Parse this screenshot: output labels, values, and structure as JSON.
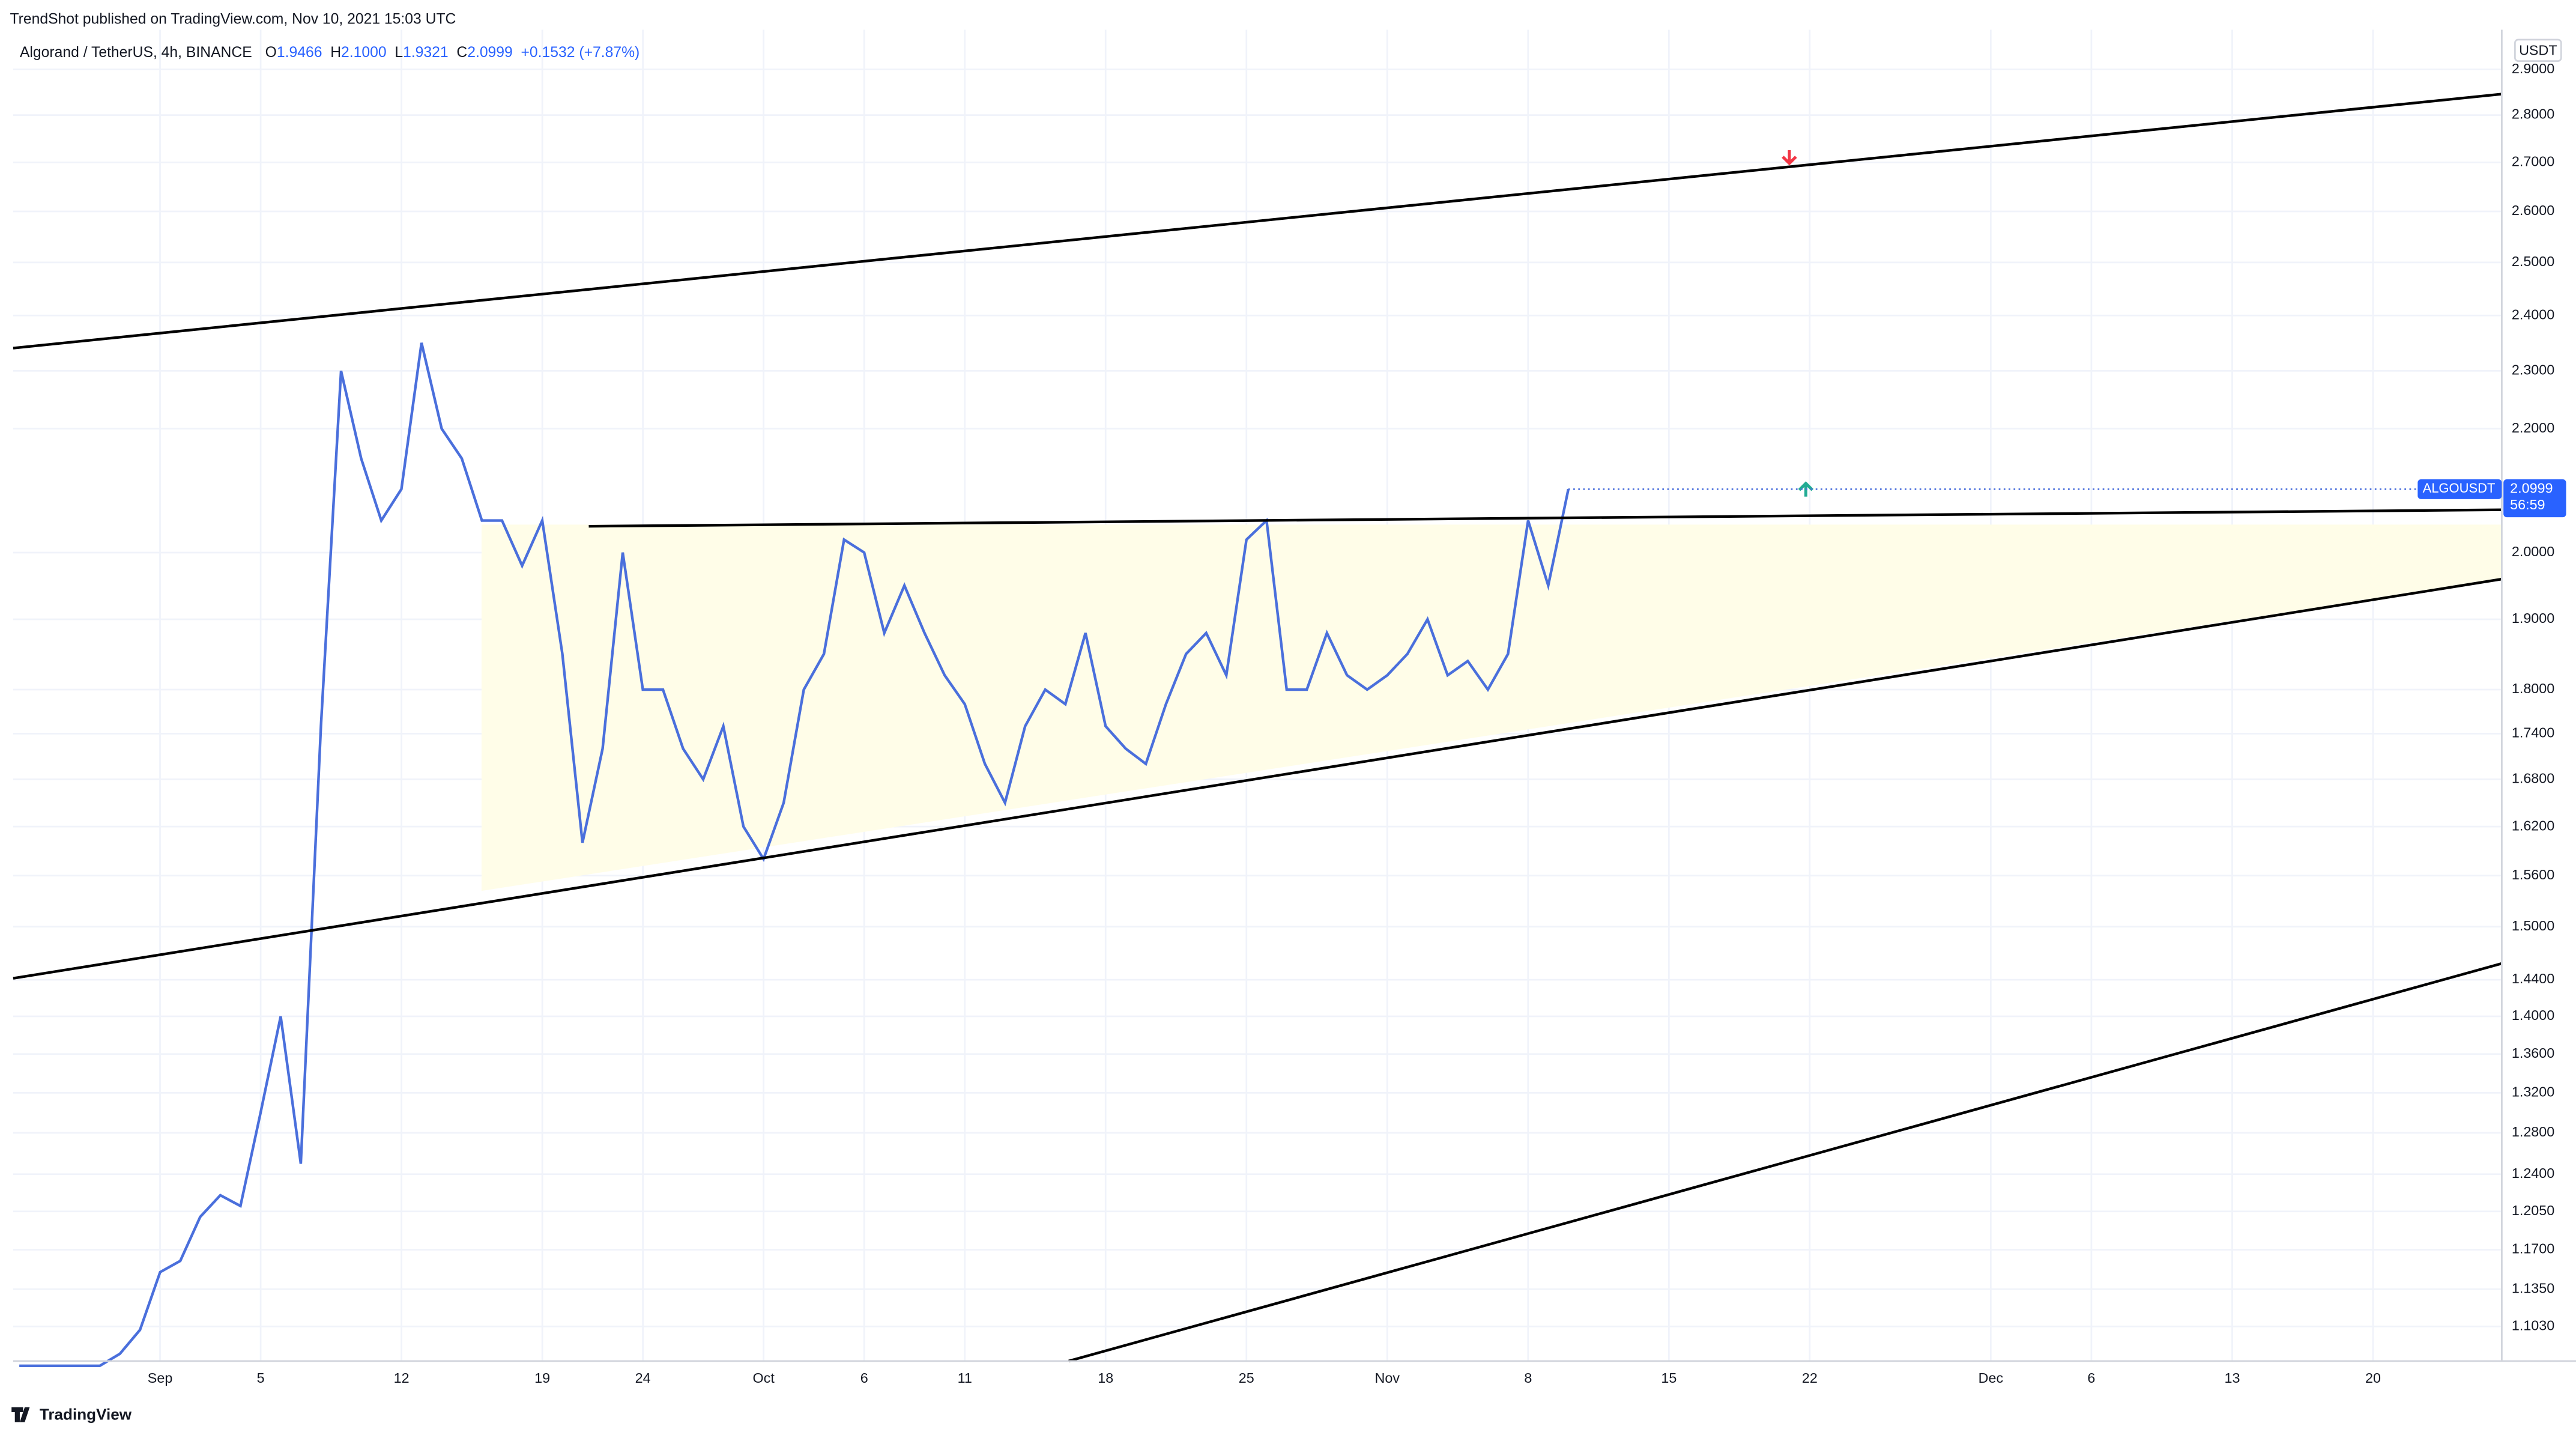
{
  "header": {
    "published": "TrendShot published on TradingView.com, Nov 10, 2021 15:03 UTC",
    "footer": "TradingView"
  },
  "chart_data": {
    "type": "line",
    "title": "Algorand / TetherUS, 4h, BINANCE",
    "ohlc": {
      "o_label": "O",
      "open": "1.9466",
      "h_label": "H",
      "high": "2.1000",
      "l_label": "L",
      "low": "1.9321",
      "c_label": "C",
      "close": "2.0999",
      "change": "+0.1532 (+7.87%)"
    },
    "symbol": "ALGOUSDT",
    "last_price": "2.0999",
    "countdown": "56:59",
    "currency": "USDT",
    "log_scale": true,
    "grid": true,
    "series": [
      {
        "name": "ALGOUSDT",
        "color": "#4a6fdc",
        "x": [
          -7,
          -6,
          -5,
          -4,
          -3,
          -2,
          -1,
          0,
          1,
          2,
          3,
          4,
          5,
          6,
          7,
          8,
          9,
          10,
          11,
          12,
          13,
          14,
          15,
          16,
          17,
          18,
          19,
          20,
          21,
          22,
          23,
          24,
          25,
          26,
          27,
          28,
          29,
          30,
          31,
          32,
          33,
          34,
          35,
          36,
          37,
          38,
          39,
          40,
          41,
          42,
          43,
          44,
          45,
          46,
          47,
          48,
          49,
          50,
          51,
          52,
          53,
          54,
          55,
          56,
          57,
          58,
          59,
          60,
          61,
          62,
          63,
          64,
          65,
          66,
          67,
          68,
          69,
          70
        ],
        "values": [
          1.07,
          1.07,
          1.07,
          1.07,
          1.07,
          1.08,
          1.1,
          1.15,
          1.16,
          1.2,
          1.22,
          1.21,
          1.3,
          1.4,
          1.25,
          1.75,
          2.3,
          2.15,
          2.05,
          2.1,
          2.35,
          2.2,
          2.15,
          2.05,
          2.05,
          1.98,
          2.05,
          1.85,
          1.6,
          1.72,
          2.0,
          1.8,
          1.8,
          1.72,
          1.68,
          1.75,
          1.62,
          1.58,
          1.65,
          1.8,
          1.85,
          2.02,
          2.0,
          1.88,
          1.95,
          1.88,
          1.82,
          1.78,
          1.7,
          1.65,
          1.75,
          1.8,
          1.78,
          1.88,
          1.75,
          1.72,
          1.7,
          1.78,
          1.85,
          1.88,
          1.82,
          2.02,
          2.05,
          1.8,
          1.8,
          1.88,
          1.82,
          1.8,
          1.82,
          1.85,
          1.9,
          1.82,
          1.84,
          1.8,
          1.85,
          2.05,
          1.95,
          2.0999
        ]
      }
    ],
    "xlim": [
      -7.3,
      116.4
    ],
    "xticks": [
      {
        "value": 0,
        "label": "Sep"
      },
      5,
      12,
      19,
      24,
      {
        "value": 30,
        "label": "Oct"
      },
      {
        "value": 35,
        "label": "6"
      },
      {
        "value": 40,
        "label": "11"
      },
      {
        "value": 47,
        "label": "18"
      },
      {
        "value": 54,
        "label": "25"
      },
      {
        "value": 61,
        "label": "Nov"
      },
      {
        "value": 68,
        "label": "8"
      },
      {
        "value": 75,
        "label": "15"
      },
      {
        "value": 82,
        "label": "22"
      },
      {
        "value": 91,
        "label": "Dec"
      },
      {
        "value": 96,
        "label": "6"
      },
      {
        "value": 103,
        "label": "13"
      },
      {
        "value": 110,
        "label": "20"
      }
    ],
    "ylim": [
      1.074,
      2.99
    ],
    "yticks": [
      {
        "value": 2.9,
        "label": "2.9000"
      },
      {
        "value": 2.8,
        "label": "2.8000"
      },
      {
        "value": 2.7,
        "label": "2.7000"
      },
      {
        "value": 2.6,
        "label": "2.6000"
      },
      {
        "value": 2.5,
        "label": "2.5000"
      },
      {
        "value": 2.4,
        "label": "2.4000"
      },
      {
        "value": 2.3,
        "label": "2.3000"
      },
      {
        "value": 2.2,
        "label": "2.2000"
      },
      {
        "value": 2.0,
        "label": "2.0000"
      },
      {
        "value": 1.9,
        "label": "1.9000"
      },
      {
        "value": 1.8,
        "label": "1.8000"
      },
      {
        "value": 1.74,
        "label": "1.7400"
      },
      {
        "value": 1.68,
        "label": "1.6800"
      },
      {
        "value": 1.62,
        "label": "1.6200"
      },
      {
        "value": 1.56,
        "label": "1.5600"
      },
      {
        "value": 1.5,
        "label": "1.5000"
      },
      {
        "value": 1.44,
        "label": "1.4400"
      },
      {
        "value": 1.4,
        "label": "1.4000"
      },
      {
        "value": 1.36,
        "label": "1.3600"
      },
      {
        "value": 1.32,
        "label": "1.3200"
      },
      {
        "value": 1.28,
        "label": "1.2800"
      },
      {
        "value": 1.24,
        "label": "1.2400"
      },
      {
        "value": 1.205,
        "label": "1.2050"
      },
      {
        "value": 1.17,
        "label": "1.1700"
      },
      {
        "value": 1.135,
        "label": "1.1350"
      },
      {
        "value": 1.103,
        "label": "1.1030"
      }
    ]
  }
}
